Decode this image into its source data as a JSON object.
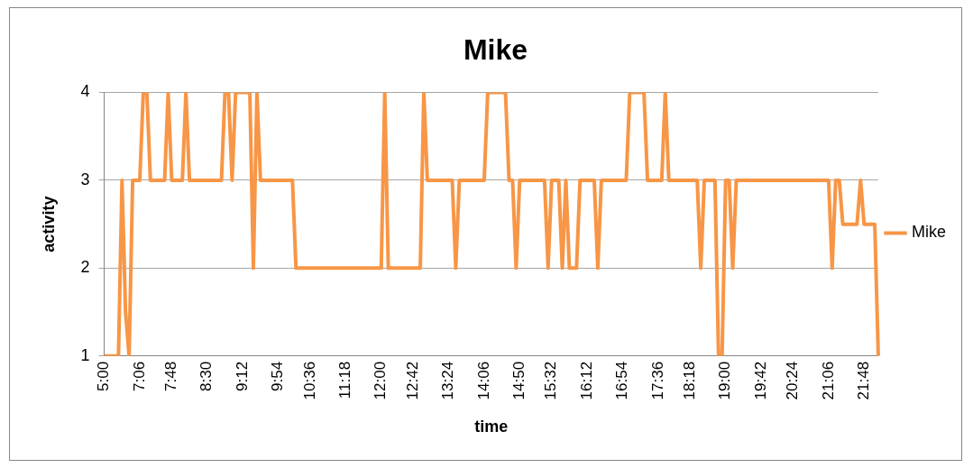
{
  "chart_data": {
    "type": "line",
    "title": "Mike",
    "xlabel": "time",
    "ylabel": "activity",
    "categories": [
      "5:00",
      null,
      null,
      null,
      null,
      null,
      null,
      null,
      null,
      null,
      "7:06",
      null,
      null,
      null,
      null,
      null,
      null,
      null,
      null,
      "7:48",
      null,
      null,
      null,
      null,
      null,
      null,
      null,
      null,
      null,
      "8:30",
      null,
      null,
      null,
      null,
      null,
      null,
      null,
      null,
      null,
      "9:12",
      null,
      null,
      null,
      null,
      null,
      null,
      null,
      null,
      null,
      "9:54",
      null,
      null,
      null,
      null,
      null,
      null,
      null,
      null,
      "10:36",
      null,
      null,
      null,
      null,
      null,
      null,
      null,
      null,
      null,
      "11:18",
      null,
      null,
      null,
      null,
      null,
      null,
      null,
      null,
      null,
      "12:00",
      null,
      null,
      null,
      null,
      null,
      null,
      null,
      null,
      "12:42",
      null,
      null,
      null,
      null,
      null,
      null,
      null,
      null,
      null,
      "13:24",
      null,
      null,
      null,
      null,
      null,
      null,
      null,
      null,
      null,
      "14:06",
      null,
      null,
      null,
      null,
      null,
      null,
      null,
      null,
      null,
      "14:50",
      null,
      null,
      null,
      null,
      null,
      null,
      null,
      null,
      "15:32",
      null,
      null,
      null,
      null,
      null,
      null,
      null,
      null,
      null,
      "16:12",
      null,
      null,
      null,
      null,
      null,
      null,
      null,
      null,
      null,
      "16:54",
      null,
      null,
      null,
      null,
      null,
      null,
      null,
      null,
      null,
      "17:36",
      null,
      null,
      null,
      null,
      null,
      null,
      null,
      null,
      "18:18",
      null,
      null,
      null,
      null,
      null,
      null,
      null,
      null,
      null,
      "19:00",
      null,
      null,
      null,
      null,
      null,
      null,
      null,
      null,
      null,
      "19:42",
      null,
      null,
      null,
      null,
      null,
      null,
      null,
      null,
      "20:24",
      null,
      null,
      null,
      null,
      null,
      null,
      null,
      null,
      null,
      "21:06",
      null,
      null,
      null,
      null,
      null,
      null,
      null,
      null,
      null,
      "21:48",
      null,
      null,
      null,
      null
    ],
    "series": [
      {
        "name": "Mike",
        "color": "#f79646",
        "values": [
          1,
          1,
          1,
          1,
          1,
          3,
          1.5,
          1,
          3,
          3,
          3,
          4,
          4,
          3,
          3,
          3,
          3,
          3,
          4,
          3,
          3,
          3,
          3,
          4,
          3,
          3,
          3,
          3,
          3,
          3,
          3,
          3,
          3,
          3,
          4,
          4,
          3,
          4,
          4,
          4,
          4,
          4,
          2,
          4,
          3,
          3,
          3,
          3,
          3,
          3,
          3,
          3,
          3,
          3,
          2,
          2,
          2,
          2,
          2,
          2,
          2,
          2,
          2,
          2,
          2,
          2,
          2,
          2,
          2,
          2,
          2,
          2,
          2,
          2,
          2,
          2,
          2,
          2,
          2,
          4,
          2,
          2,
          2,
          2,
          2,
          2,
          2,
          2,
          2,
          2,
          4,
          3,
          3,
          3,
          3,
          3,
          3,
          3,
          3,
          2,
          3,
          3,
          3,
          3,
          3,
          3,
          3,
          3,
          4,
          4,
          4,
          4,
          4,
          4,
          3,
          3,
          2,
          3,
          3,
          3,
          3,
          3,
          3,
          3,
          3,
          2,
          3,
          3,
          3,
          2,
          3,
          2,
          2,
          2,
          3,
          3,
          3,
          3,
          3,
          2,
          3,
          3,
          3,
          3,
          3,
          3,
          3,
          3,
          4,
          4,
          4,
          4,
          4,
          3,
          3,
          3,
          3,
          3,
          4,
          3,
          3,
          3,
          3,
          3,
          3,
          3,
          3,
          3,
          2,
          3,
          3,
          3,
          3,
          1,
          1,
          3,
          3,
          2,
          3,
          3,
          3,
          3,
          3,
          3,
          3,
          3,
          3,
          3,
          3,
          3,
          3,
          3,
          3,
          3,
          3,
          3,
          3,
          3,
          3,
          3,
          3,
          3,
          3,
          3,
          3,
          2,
          3,
          3,
          2.5,
          2.5,
          2.5,
          2.5,
          2.5,
          3,
          2.5,
          2.5,
          2.5,
          2.5,
          1
        ]
      }
    ],
    "ylim": [
      1,
      4
    ],
    "yticks": [
      1,
      2,
      3,
      4
    ],
    "grid": "y",
    "legend": "right",
    "marker": "none",
    "line_style": "solid"
  }
}
